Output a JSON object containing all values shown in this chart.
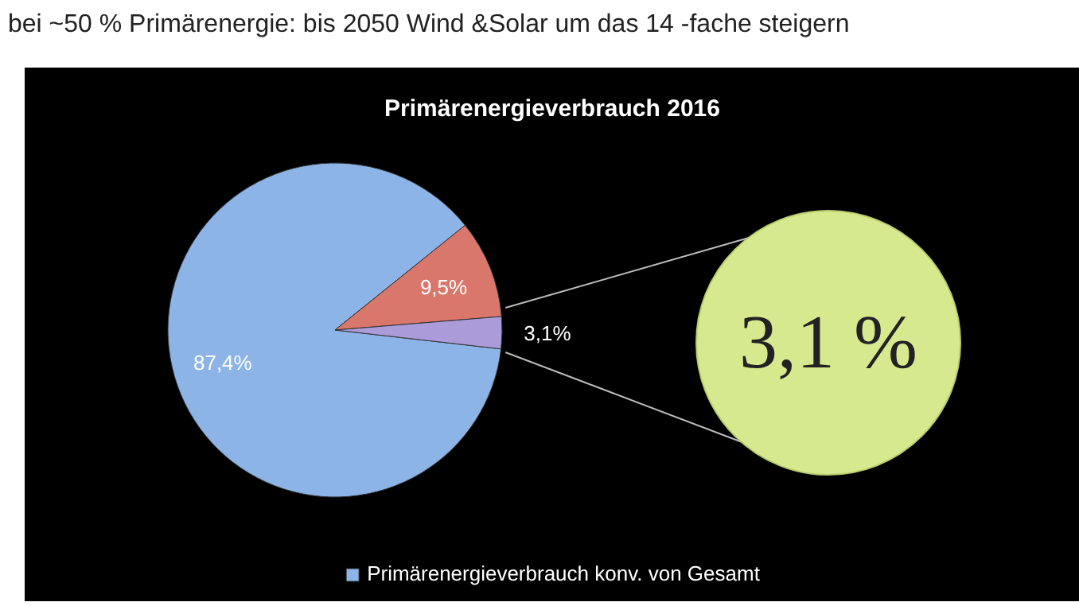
{
  "chart_data": {
    "type": "pie",
    "title": "Primärenergieverbrauch 2016",
    "categories": [
      "Primärenergieverbrauch konv. von Gesamt",
      null,
      null
    ],
    "values": [
      87.4,
      9.5,
      3.1
    ],
    "colors": [
      "#8db4e6",
      "#d9776c",
      "#ab9bd9"
    ],
    "value_labels": [
      "87,4%",
      "9,5%",
      "3,1%"
    ],
    "legend": "bottom",
    "annotations": [
      "bei ~50 % Primärenergie: bis 2050 Wind &Solar um das 14 -fache steigern",
      "3,1 %"
    ]
  }
}
